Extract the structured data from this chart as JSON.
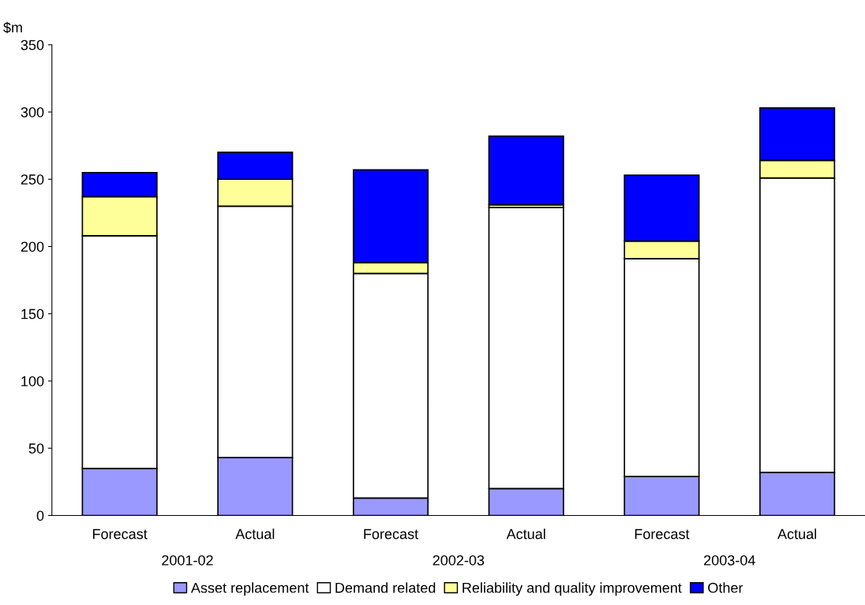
{
  "chart_data": {
    "type": "bar",
    "stacked": true,
    "ylabel": "$m",
    "categories": [
      "Forecast",
      "Actual",
      "Forecast",
      "Actual",
      "Forecast",
      "Actual"
    ],
    "annotations": [
      "2001-02",
      "2002-03",
      "2003-04"
    ],
    "series": [
      {
        "name": "Asset replacement",
        "color": "#9999ff",
        "values": [
          35,
          43,
          13,
          20,
          29,
          32
        ]
      },
      {
        "name": "Demand related",
        "color": "#ffffff",
        "values": [
          173,
          187,
          167,
          209,
          162,
          219
        ]
      },
      {
        "name": "Reliability and quality improvement",
        "color": "#ffff99",
        "values": [
          29,
          20,
          8,
          2,
          13,
          13
        ]
      },
      {
        "name": "Other",
        "color": "#0000ff",
        "values": [
          18,
          20,
          69,
          51,
          49,
          39
        ]
      }
    ],
    "ylim": [
      0,
      350
    ],
    "yticks": [
      0,
      50,
      100,
      150,
      200,
      250,
      300,
      350
    ],
    "grid": false,
    "legend": "bottom"
  }
}
